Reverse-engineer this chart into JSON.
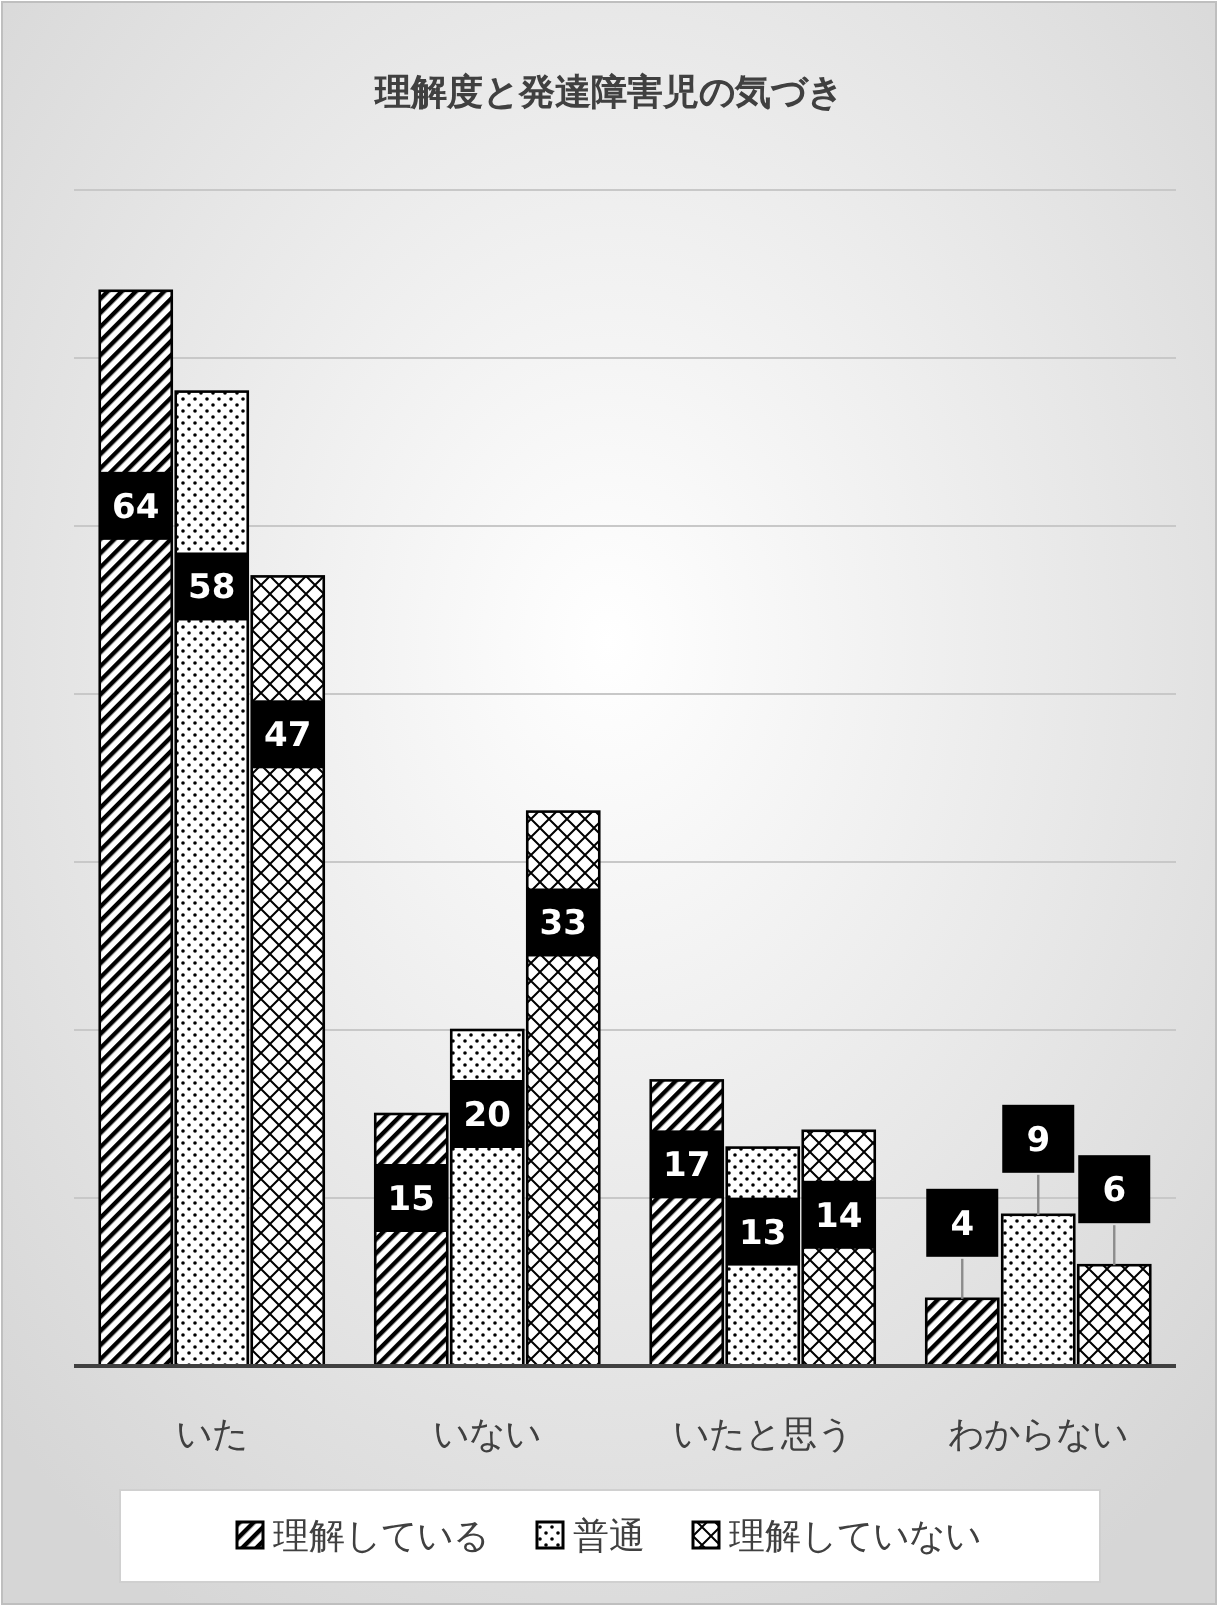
{
  "chart_data": {
    "type": "bar",
    "title": "理解度と発達障害児の気づき",
    "categories": [
      "いた",
      "いない",
      "いたと思う",
      "わからない"
    ],
    "series": [
      {
        "name": "理解している",
        "color": "#000000",
        "values": [
          64,
          15,
          17,
          4
        ]
      },
      {
        "name": "普通",
        "color": "#000000",
        "values": [
          58,
          20,
          13,
          9
        ]
      },
      {
        "name": "理解していない",
        "color": "#000000",
        "values": [
          47,
          33,
          14,
          6
        ]
      }
    ],
    "ylim": [
      0,
      70
    ],
    "yticks": [
      {
        "value": 0,
        "label": null
      },
      {
        "value": 10,
        "label": null
      },
      {
        "value": 20,
        "label": null
      },
      {
        "value": 30,
        "label": null
      },
      {
        "value": 40,
        "label": null
      },
      {
        "value": 50,
        "label": null
      },
      {
        "value": 60,
        "label": null
      },
      {
        "value": 70,
        "label": null
      }
    ],
    "tick_labels": "x",
    "grid": "y",
    "legend": "bottom",
    "data_labels": true
  }
}
